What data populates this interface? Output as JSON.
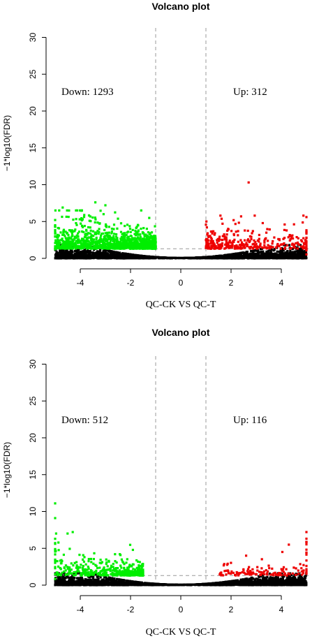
{
  "chart_data": [
    {
      "type": "scatter",
      "title": "Volcano plot",
      "xlabel": "QC-CK VS QC-T",
      "ylabel": "−1*log10(FDR)",
      "xlim": [
        -5.2,
        5.2
      ],
      "ylim": [
        0,
        31
      ],
      "x_ticks": [
        "-4",
        "-2",
        "0",
        "2",
        "4"
      ],
      "y_ticks": [
        "0",
        "5",
        "10",
        "15",
        "20",
        "25",
        "30"
      ],
      "thresholds": {
        "x": [
          -1,
          1
        ],
        "y": 1.3
      },
      "annotations": {
        "down": "Down: 1293",
        "up": "Up: 312"
      },
      "series_colors": {
        "down": "#00ee00",
        "up": "#ee0000",
        "ns": "#000000"
      },
      "series": [
        {
          "key": "down",
          "count": 1293,
          "x_range": [
            -5,
            -1
          ],
          "max_y": 7.6
        },
        {
          "key": "up",
          "count": 312,
          "x_range": [
            1,
            5
          ],
          "max_y": 10.3
        },
        {
          "key": "ns",
          "count": 2600,
          "x_range": [
            -5,
            5
          ],
          "max_y": 1.8
        }
      ],
      "highlight_points": [
        {
          "x": 2.7,
          "y": 10.3
        },
        {
          "x": -3.4,
          "y": 7.6
        },
        {
          "x": -4.7,
          "y": 6.9
        },
        {
          "x": -5.0,
          "y": 5.2
        },
        {
          "x": 5.0,
          "y": 5.6
        },
        {
          "x": 2.4,
          "y": 5.7
        },
        {
          "x": -3.0,
          "y": 7.2
        }
      ]
    },
    {
      "type": "scatter",
      "title": "Volcano plot",
      "xlabel": "QC-CK VS QC-T",
      "ylabel": "−1*log10(FDR)",
      "xlim": [
        -5.2,
        5.2
      ],
      "ylim": [
        0,
        31
      ],
      "x_ticks": [
        "-4",
        "-2",
        "0",
        "2",
        "4"
      ],
      "y_ticks": [
        "0",
        "5",
        "10",
        "15",
        "20",
        "25",
        "30"
      ],
      "thresholds": {
        "x": [
          -1,
          1
        ],
        "y": 1.3
      },
      "annotations": {
        "down": "Down: 512",
        "up": "Up: 116"
      },
      "series_colors": {
        "down": "#00ee00",
        "up": "#ee0000",
        "ns": "#000000"
      },
      "series": [
        {
          "key": "down",
          "count": 512,
          "x_range": [
            -5,
            -1.5
          ],
          "max_y": 11.1
        },
        {
          "key": "up",
          "count": 116,
          "x_range": [
            1.5,
            5
          ],
          "max_y": 7.2
        },
        {
          "key": "ns",
          "count": 2600,
          "x_range": [
            -5,
            5
          ],
          "max_y": 1.6
        }
      ],
      "highlight_points": [
        {
          "x": -5.0,
          "y": 11.1
        },
        {
          "x": -5.0,
          "y": 9.1
        },
        {
          "x": -4.3,
          "y": 7.2
        },
        {
          "x": 5.0,
          "y": 7.2
        },
        {
          "x": 5.0,
          "y": 6.3
        },
        {
          "x": 4.3,
          "y": 5.5
        },
        {
          "x": 2.6,
          "y": 4.0
        }
      ]
    }
  ]
}
